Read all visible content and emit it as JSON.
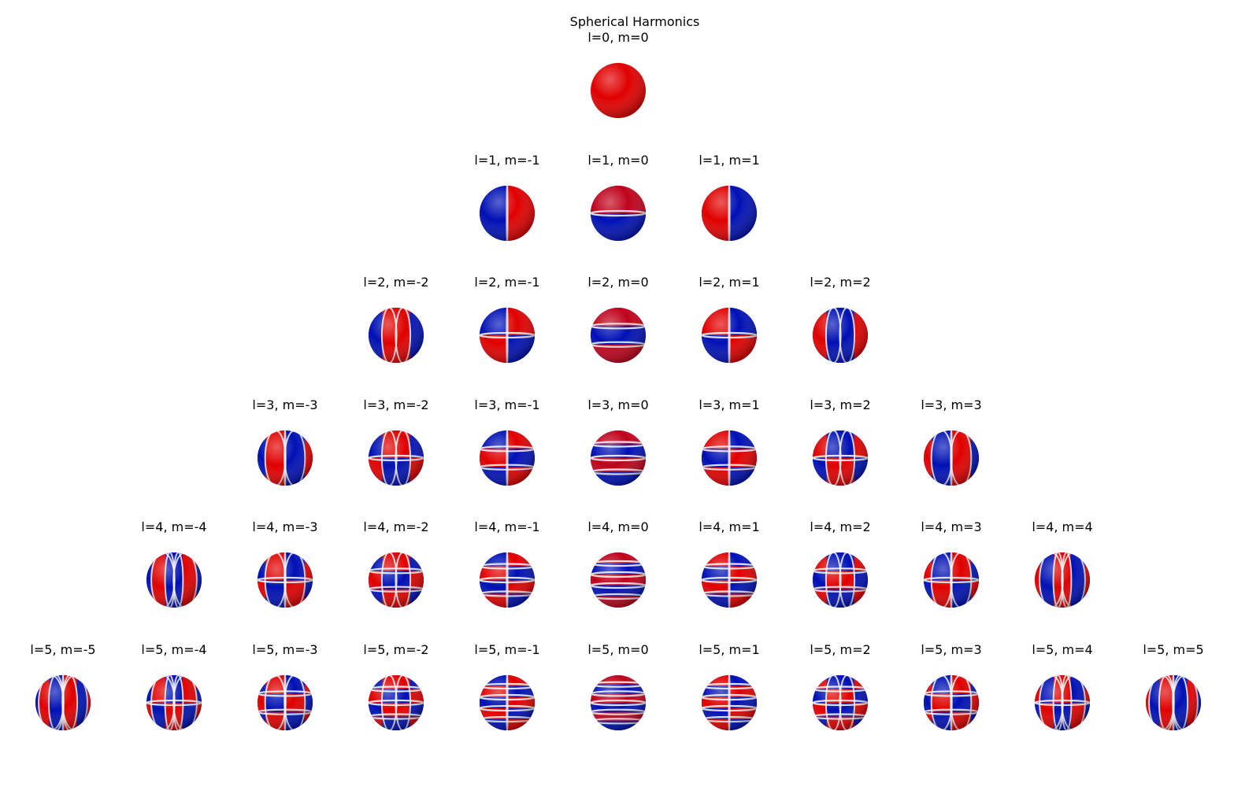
{
  "figure": {
    "title": "Spherical Harmonics"
  },
  "colors": {
    "positive": "#e00000",
    "negative": "#0010b4",
    "neutral": "#f2f2f2"
  },
  "rows": [
    {
      "l": 0,
      "cells": [
        {
          "m": 0,
          "label": "l=0, m=0"
        }
      ]
    },
    {
      "l": 1,
      "cells": [
        {
          "m": -1,
          "label": "l=1, m=-1"
        },
        {
          "m": 0,
          "label": "l=1, m=0"
        },
        {
          "m": 1,
          "label": "l=1, m=1"
        }
      ]
    },
    {
      "l": 2,
      "cells": [
        {
          "m": -2,
          "label": "l=2, m=-2"
        },
        {
          "m": -1,
          "label": "l=2, m=-1"
        },
        {
          "m": 0,
          "label": "l=2, m=0"
        },
        {
          "m": 1,
          "label": "l=2, m=1"
        },
        {
          "m": 2,
          "label": "l=2, m=2"
        }
      ]
    },
    {
      "l": 3,
      "cells": [
        {
          "m": -3,
          "label": "l=3, m=-3"
        },
        {
          "m": -2,
          "label": "l=3, m=-2"
        },
        {
          "m": -1,
          "label": "l=3, m=-1"
        },
        {
          "m": 0,
          "label": "l=3, m=0"
        },
        {
          "m": 1,
          "label": "l=3, m=1"
        },
        {
          "m": 2,
          "label": "l=3, m=2"
        },
        {
          "m": 3,
          "label": "l=3, m=3"
        }
      ]
    },
    {
      "l": 4,
      "cells": [
        {
          "m": -4,
          "label": "l=4, m=-4"
        },
        {
          "m": -3,
          "label": "l=4, m=-3"
        },
        {
          "m": -2,
          "label": "l=4, m=-2"
        },
        {
          "m": -1,
          "label": "l=4, m=-1"
        },
        {
          "m": 0,
          "label": "l=4, m=0"
        },
        {
          "m": 1,
          "label": "l=4, m=1"
        },
        {
          "m": 2,
          "label": "l=4, m=2"
        },
        {
          "m": 3,
          "label": "l=4, m=3"
        },
        {
          "m": 4,
          "label": "l=4, m=4"
        }
      ]
    },
    {
      "l": 5,
      "cells": [
        {
          "m": -5,
          "label": "l=5, m=-5"
        },
        {
          "m": -4,
          "label": "l=5, m=-4"
        },
        {
          "m": -3,
          "label": "l=5, m=-3"
        },
        {
          "m": -2,
          "label": "l=5, m=-2"
        },
        {
          "m": -1,
          "label": "l=5, m=-1"
        },
        {
          "m": 0,
          "label": "l=5, m=0"
        },
        {
          "m": 1,
          "label": "l=5, m=1"
        },
        {
          "m": 2,
          "label": "l=5, m=2"
        },
        {
          "m": 3,
          "label": "l=5, m=3"
        },
        {
          "m": 4,
          "label": "l=5, m=4"
        },
        {
          "m": 5,
          "label": "l=5, m=5"
        }
      ]
    }
  ]
}
